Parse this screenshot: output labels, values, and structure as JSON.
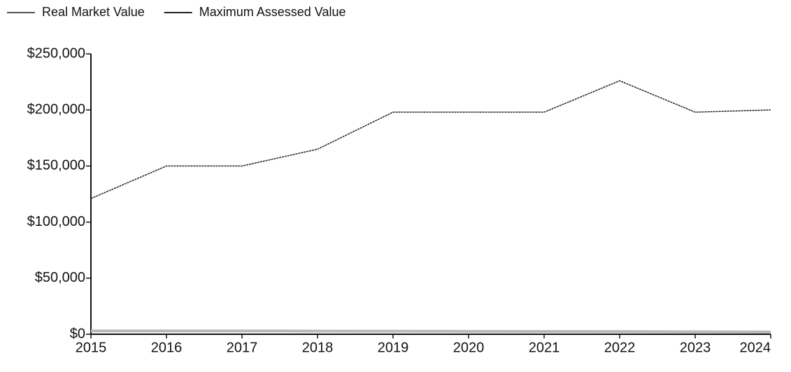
{
  "chart_data": {
    "type": "line",
    "x": [
      2015,
      2016,
      2017,
      2018,
      2019,
      2020,
      2021,
      2022,
      2023,
      2024
    ],
    "series": [
      {
        "name": "Real Market Value",
        "color": "#b8b8b8",
        "values": [
          3000,
          3000,
          3000,
          2800,
          2700,
          2600,
          2500,
          2400,
          2200,
          2000
        ]
      },
      {
        "name": "Maximum Assessed Value",
        "color": "#222222",
        "values": [
          121000,
          150000,
          150000,
          165000,
          198000,
          198000,
          198000,
          226000,
          198000,
          200000
        ]
      }
    ],
    "xlim": [
      2015,
      2024
    ],
    "xticks": [
      2015,
      2016,
      2017,
      2018,
      2019,
      2020,
      2021,
      2022,
      2023,
      2024
    ],
    "ylim": [
      0,
      250000
    ],
    "yticks": [
      {
        "value": 0,
        "label": "$0"
      },
      {
        "value": 50000,
        "label": "$50,000"
      },
      {
        "value": 100000,
        "label": "$100,000"
      },
      {
        "value": 150000,
        "label": "$150,000"
      },
      {
        "value": 200000,
        "label": "$200,000"
      },
      {
        "value": 250000,
        "label": "$250,000"
      }
    ],
    "grid": false,
    "legend": "top-left"
  }
}
